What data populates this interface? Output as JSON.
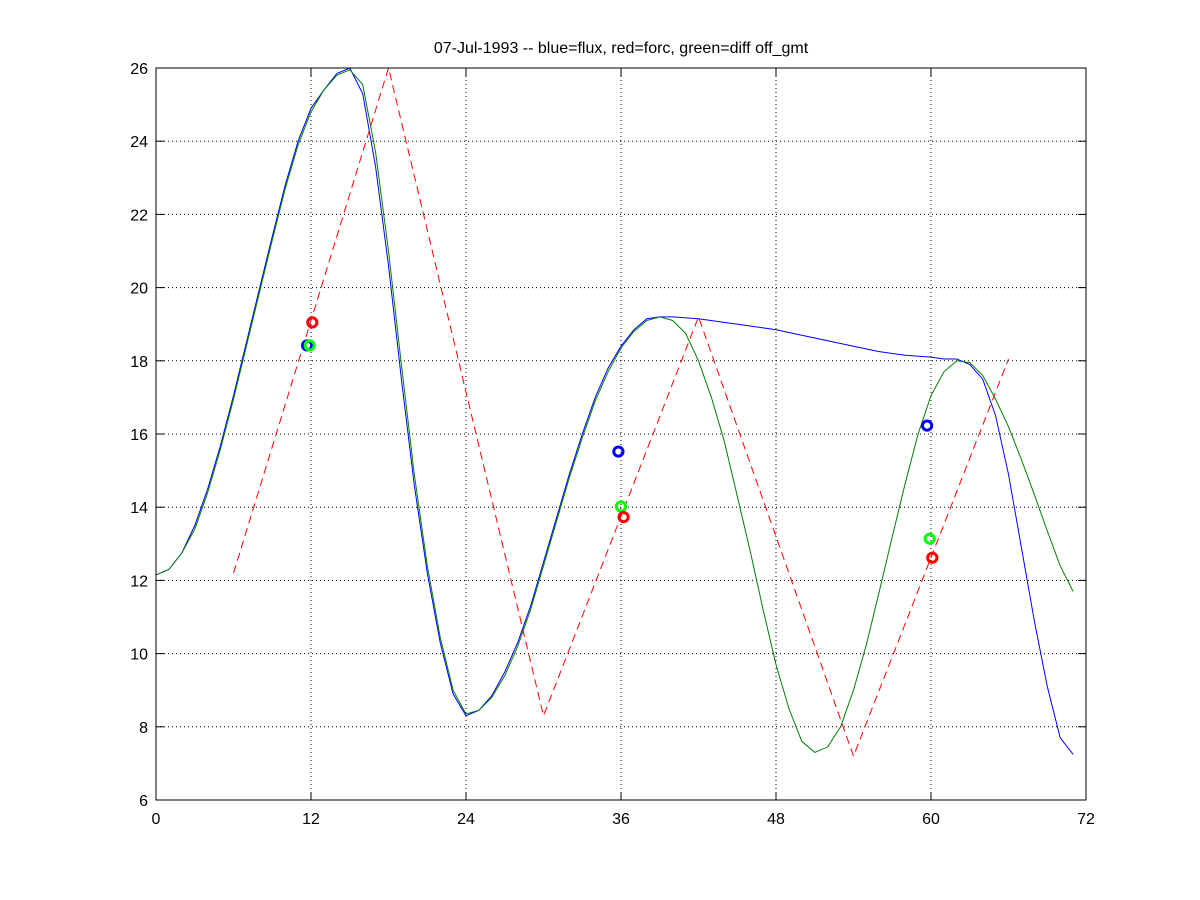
{
  "chart_data": {
    "type": "line",
    "title": "07-Jul-1993 -- blue=flux, red=forc, green=diff off_gmt",
    "xlabel": "",
    "ylabel": "",
    "xlim": [
      0,
      72
    ],
    "ylim": [
      6,
      26
    ],
    "xticks": [
      0,
      12,
      24,
      36,
      48,
      60,
      72
    ],
    "yticks": [
      6,
      8,
      10,
      12,
      14,
      16,
      18,
      20,
      22,
      24,
      26
    ],
    "grid": true,
    "legend": "none",
    "colors": {
      "flux": "#0000ff",
      "forc": "#ff0000",
      "diff": "#008000",
      "diff_marker": "#00ff00"
    },
    "series": [
      {
        "key": "flux",
        "style": "solid",
        "x": [
          0,
          1,
          2,
          3,
          4,
          5,
          6,
          7,
          8,
          9,
          10,
          11,
          12,
          13,
          14,
          15,
          16,
          17,
          18,
          19,
          20,
          21,
          22,
          23,
          24,
          25,
          26,
          27,
          28,
          29,
          30,
          31,
          32,
          33,
          34,
          35,
          36,
          37,
          38,
          39,
          40,
          42,
          44,
          46,
          48,
          50,
          52,
          54,
          56,
          58,
          60,
          61,
          62,
          63,
          64,
          65,
          66,
          67,
          68,
          69,
          70,
          71
        ],
        "y": [
          12.15,
          12.3,
          12.75,
          13.5,
          14.5,
          15.7,
          17.05,
          18.5,
          19.95,
          21.4,
          22.8,
          24.0,
          24.9,
          25.4,
          25.85,
          26.0,
          25.3,
          23.3,
          20.6,
          17.5,
          14.6,
          12.2,
          10.3,
          8.9,
          8.3,
          8.45,
          8.85,
          9.5,
          10.3,
          11.3,
          12.5,
          13.7,
          14.9,
          16.0,
          17.0,
          17.8,
          18.4,
          18.85,
          19.15,
          19.2,
          19.2,
          19.15,
          19.05,
          18.95,
          18.85,
          18.7,
          18.55,
          18.4,
          18.25,
          18.15,
          18.1,
          18.05,
          18.05,
          17.9,
          17.5,
          16.5,
          14.9,
          12.9,
          10.9,
          9.1,
          7.7,
          7.25
        ]
      },
      {
        "key": "diff",
        "style": "solid",
        "x": [
          0,
          1,
          2,
          3,
          4,
          5,
          6,
          7,
          8,
          9,
          10,
          11,
          12,
          13,
          14,
          15,
          16,
          17,
          18,
          19,
          20,
          21,
          22,
          23,
          24,
          25,
          26,
          27,
          28,
          29,
          30,
          31,
          32,
          33,
          34,
          35,
          36,
          37,
          38,
          39,
          40,
          41,
          42,
          43,
          44,
          45,
          46,
          47,
          48,
          49,
          50,
          51,
          52,
          53,
          54,
          55,
          56,
          57,
          58,
          59,
          60,
          61,
          62,
          63,
          64,
          65,
          66,
          67,
          68,
          69,
          70,
          71
        ],
        "y": [
          12.15,
          12.3,
          12.75,
          13.4,
          14.4,
          15.6,
          16.95,
          18.4,
          19.85,
          21.3,
          22.7,
          23.9,
          24.8,
          25.4,
          25.8,
          25.95,
          25.55,
          23.7,
          21.0,
          17.9,
          14.9,
          12.4,
          10.45,
          9.0,
          8.35,
          8.45,
          8.8,
          9.4,
          10.2,
          11.2,
          12.4,
          13.6,
          14.8,
          15.9,
          16.9,
          17.7,
          18.35,
          18.8,
          19.1,
          19.2,
          19.1,
          18.75,
          18.0,
          17.0,
          15.8,
          14.3,
          12.8,
          11.2,
          9.7,
          8.5,
          7.6,
          7.3,
          7.45,
          8.0,
          9.0,
          10.25,
          11.7,
          13.2,
          14.65,
          16.0,
          17.05,
          17.7,
          18.0,
          17.95,
          17.6,
          16.95,
          16.2,
          15.3,
          14.35,
          13.35,
          12.4,
          11.7
        ]
      },
      {
        "key": "forc",
        "style": "dashed",
        "x": [
          6,
          18,
          30,
          42,
          54,
          66
        ],
        "y": [
          12.2,
          26.0,
          8.3,
          19.2,
          7.2,
          18.05
        ]
      }
    ],
    "markers": [
      {
        "key": "flux",
        "x": [
          11.7,
          35.8,
          59.7
        ],
        "y": [
          18.42,
          15.52,
          16.23
        ]
      },
      {
        "key": "diff_marker",
        "x": [
          11.9,
          36.0,
          59.9
        ],
        "y": [
          18.42,
          14.02,
          13.14
        ]
      },
      {
        "key": "forc",
        "x": [
          12.1,
          36.2,
          60.1
        ],
        "y": [
          19.05,
          13.73,
          12.62
        ]
      }
    ]
  }
}
